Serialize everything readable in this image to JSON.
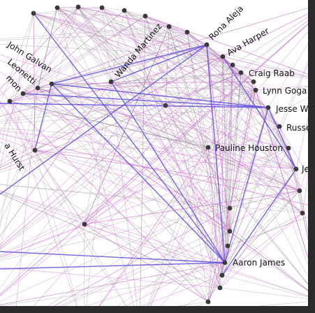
{
  "graph": {
    "type": "network",
    "layout": "circular",
    "colors": {
      "background": "#ffffff",
      "node": "#3a3a3a",
      "edge_gray": "#8f8f8f",
      "edge_pink": "#d070d0",
      "edge_blue": "#5b4fe0",
      "label": "#111111"
    },
    "labels": [
      "Rona Aleja",
      "Ava Harper",
      "Wanda Martinez",
      "John Galvan",
      "Leonetti",
      "mon",
      "Craig Raab",
      "Lynn Goga",
      "Jesse W",
      "Russe",
      "Pauline Houston",
      "Je",
      "a Hurst",
      "Aaron James"
    ]
  }
}
